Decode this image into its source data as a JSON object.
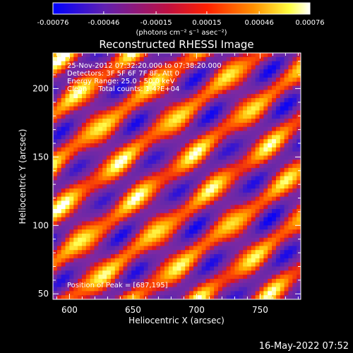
{
  "chart_data": {
    "type": "heatmap",
    "title": "Reconstructed RHESSI Image",
    "xlabel": "Heliocentric X (arcsec)",
    "ylabel": "Heliocentric Y (arcsec)",
    "xlim": [
      587,
      782
    ],
    "ylim": [
      46,
      226
    ],
    "x_ticks": [
      "600",
      "650",
      "700",
      "750"
    ],
    "y_ticks": [
      "50",
      "100",
      "150",
      "200"
    ],
    "colorbar": {
      "min": -0.00076,
      "max": 0.00076,
      "ticks": [
        "-0.00076",
        "-0.00046",
        "-0.00015",
        "0.00015",
        "0.00046",
        "0.00076"
      ],
      "units": "(photons cm⁻² s⁻¹ asec⁻²)",
      "colormap": [
        "#0000ff",
        "#7030a0",
        "#ff0000",
        "#ff8000",
        "#ffff00",
        "#ffffff"
      ]
    },
    "annotations": [
      "25-Nov-2012 07:32:20.000 to 07:38:20.000",
      "Detectors: 3F 5F 6F 7F 8F, Att 0",
      "Energy Range: 25.0 - 50.0 keV",
      "Clean     Total counts: 1.4?E+04",
      "Position of Peak = [687,195]"
    ],
    "timestamp": "16-May-2022 07:52",
    "peak": {
      "x": 687,
      "y": 195
    }
  }
}
